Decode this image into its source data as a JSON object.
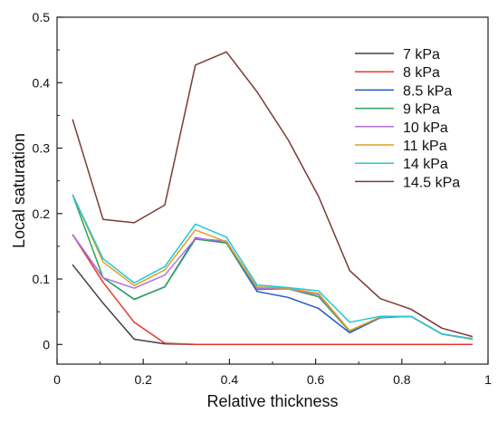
{
  "chart_data": {
    "type": "line",
    "title": "",
    "xlabel": "Relative thickness",
    "ylabel": "Local saturation",
    "xlim": [
      0,
      1
    ],
    "ylim": [
      -0.03,
      0.5
    ],
    "x_ticks": [
      0,
      0.2,
      0.4,
      0.6,
      0.8,
      1
    ],
    "x_tick_labels": [
      "0",
      "0.2",
      "0.4",
      "0.6",
      "0.8",
      "1"
    ],
    "y_ticks": [
      0,
      0.1,
      0.2,
      0.3,
      0.4,
      0.5
    ],
    "y_tick_labels": [
      "0",
      "0.1",
      "0.2",
      "0.3",
      "0.4",
      "0.5"
    ],
    "grid": false,
    "legend_position": "top-right",
    "x": [
      0.036,
      0.107,
      0.179,
      0.25,
      0.321,
      0.393,
      0.464,
      0.536,
      0.607,
      0.679,
      0.75,
      0.821,
      0.893,
      0.964
    ],
    "series": [
      {
        "name": "7 kPa",
        "color": "#404040",
        "values": [
          0.122,
          0.063,
          0.008,
          0.001,
          0,
          0,
          0,
          0,
          0,
          0,
          0,
          0,
          0,
          0
        ]
      },
      {
        "name": "8 kPa",
        "color": "#e8372c",
        "values": [
          0.168,
          0.095,
          0.034,
          0.002,
          0,
          0,
          0,
          0,
          0,
          0,
          0,
          0,
          0,
          0
        ]
      },
      {
        "name": "8.5 kPa",
        "color": "#2255cc",
        "values": [
          0.168,
          0.102,
          0.069,
          0.088,
          0.163,
          0.155,
          0.081,
          0.072,
          0.055,
          0.018,
          0.041,
          0.043,
          0.016,
          0.008
        ]
      },
      {
        "name": "9 kPa",
        "color": "#2ea35a",
        "values": [
          0.229,
          0.102,
          0.069,
          0.088,
          0.161,
          0.155,
          0.084,
          0.085,
          0.073,
          0.02,
          0.042,
          0.043,
          0.016,
          0.008
        ]
      },
      {
        "name": "10 kPa",
        "color": "#b070e0",
        "values": [
          0.168,
          0.102,
          0.086,
          0.106,
          0.162,
          0.158,
          0.086,
          0.085,
          0.076,
          0.021,
          0.042,
          0.043,
          0.016,
          0.008
        ]
      },
      {
        "name": "11 kPa",
        "color": "#e0a020",
        "values": [
          0.229,
          0.126,
          0.09,
          0.114,
          0.175,
          0.157,
          0.088,
          0.086,
          0.078,
          0.021,
          0.042,
          0.043,
          0.016,
          0.008
        ]
      },
      {
        "name": "14 kPa",
        "color": "#1ec8d8",
        "values": [
          0.229,
          0.131,
          0.094,
          0.119,
          0.184,
          0.164,
          0.091,
          0.087,
          0.082,
          0.034,
          0.043,
          0.043,
          0.016,
          0.009
        ]
      },
      {
        "name": "14.5 kPa",
        "color": "#7a3a35",
        "values": [
          0.344,
          0.191,
          0.186,
          0.213,
          0.427,
          0.447,
          0.386,
          0.313,
          0.226,
          0.113,
          0.07,
          0.054,
          0.025,
          0.012
        ]
      }
    ]
  }
}
